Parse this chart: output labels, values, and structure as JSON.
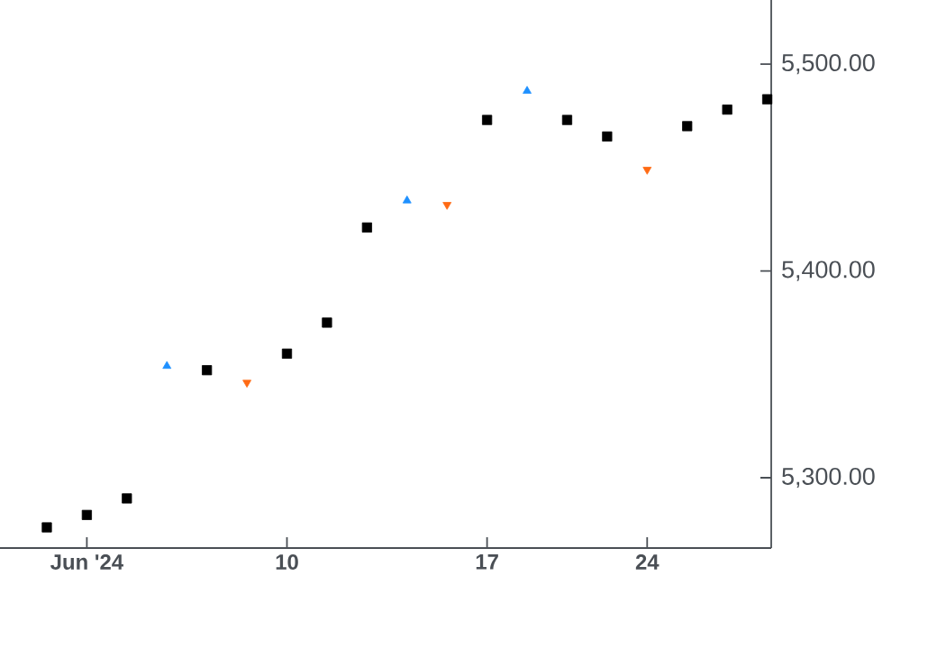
{
  "chart_data": {
    "type": "scatter",
    "categories": [
      null,
      "Jun '24",
      null,
      null,
      null,
      null,
      "10",
      null,
      null,
      null,
      null,
      "17",
      null,
      null,
      null,
      "24",
      null,
      null,
      null
    ],
    "series": [
      {
        "color": "#000000",
        "marker": "square",
        "values": [
          5276,
          5282,
          5290,
          null,
          5352,
          null,
          5360,
          5375,
          5421,
          null,
          null,
          5473,
          null,
          5473,
          5465,
          null,
          5470,
          5478,
          5483
        ]
      },
      {
        "color": "#1e90ff",
        "marker": "triangle",
        "values": [
          null,
          null,
          null,
          5354,
          null,
          null,
          null,
          null,
          null,
          5434,
          null,
          null,
          5487,
          null,
          null,
          null,
          null,
          null,
          null
        ]
      },
      {
        "color": "#ff6a13",
        "marker": "triangle_down",
        "values": [
          null,
          null,
          null,
          null,
          null,
          5346,
          null,
          null,
          null,
          null,
          5432,
          null,
          null,
          null,
          null,
          5449,
          null,
          null,
          null
        ]
      }
    ],
    "ylim": [
      5266,
      5531
    ],
    "yticks": [
      {
        "value": 5300,
        "label": "5,300.00"
      },
      {
        "value": 5400,
        "label": "5,400.00"
      },
      {
        "value": 5500,
        "label": "5,500.00"
      }
    ],
    "grid": false
  }
}
